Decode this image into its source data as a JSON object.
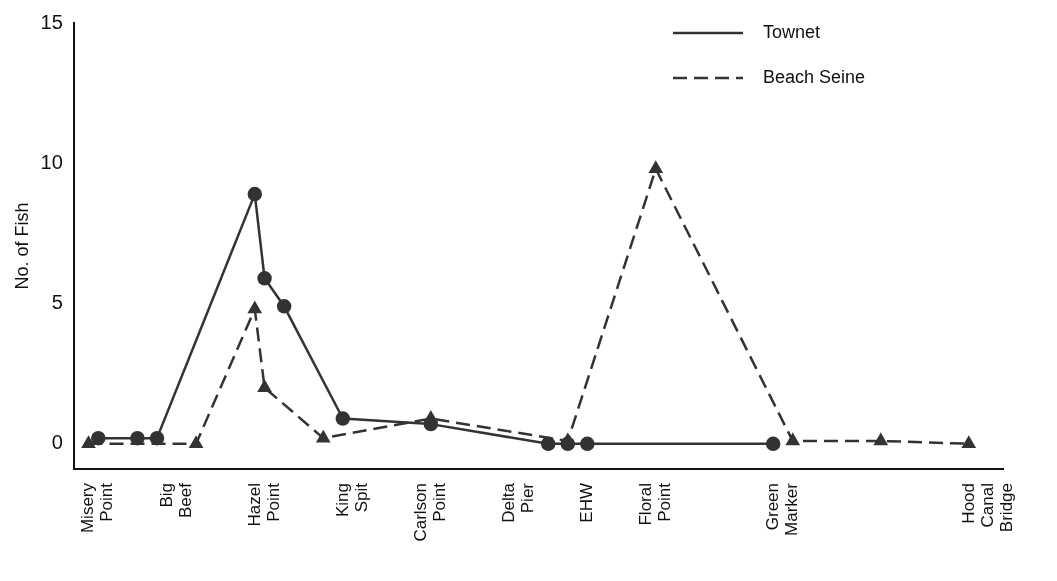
{
  "chart_data": {
    "type": "line",
    "ylabel": "No. of Fish",
    "ylim": [
      -0.9,
      15
    ],
    "yticks": [
      0,
      5,
      10,
      15
    ],
    "categories": [
      null,
      null,
      "Misery Point",
      null,
      null,
      null,
      null,
      null,
      null,
      null,
      "Big Beef",
      null,
      null,
      null,
      null,
      null,
      null,
      null,
      null,
      "Hazel Point",
      null,
      null,
      null,
      null,
      null,
      null,
      null,
      null,
      "King Spit",
      null,
      null,
      null,
      null,
      null,
      null,
      null,
      "Carlson Point",
      null,
      null,
      null,
      null,
      null,
      null,
      null,
      null,
      "Delta Pier",
      null,
      null,
      null,
      null,
      null,
      null,
      "EHW",
      null,
      null,
      null,
      null,
      null,
      null,
      "Floral Point",
      null,
      null,
      null,
      null,
      null,
      null,
      null,
      null,
      null,
      null,
      null,
      null,
      "Green Marker",
      null,
      null,
      null,
      null,
      null,
      null,
      null,
      null,
      null,
      null,
      null,
      null,
      null,
      null,
      null,
      null,
      null,
      null,
      null,
      null,
      "Hood Canal Bridge",
      null
    ],
    "grid": false,
    "legend": "top right",
    "series": [
      {
        "name": "Townet",
        "color": "#333333",
        "marker": "circle",
        "line_style": "solid",
        "values": [
          null,
          null,
          0.2,
          null,
          null,
          null,
          0.2,
          null,
          0.2,
          null,
          null,
          null,
          null,
          null,
          null,
          null,
          null,
          null,
          8.9,
          5.9,
          null,
          4.9,
          null,
          null,
          null,
          null,
          null,
          0.9,
          null,
          null,
          null,
          null,
          null,
          null,
          null,
          null,
          0.7,
          null,
          null,
          null,
          null,
          null,
          null,
          null,
          null,
          null,
          null,
          null,
          0,
          null,
          0,
          null,
          0,
          null,
          null,
          null,
          null,
          null,
          null,
          null,
          null,
          null,
          null,
          null,
          null,
          null,
          null,
          null,
          null,
          null,
          null,
          0,
          null,
          null,
          null,
          null,
          null,
          null,
          null,
          null,
          null,
          null,
          null,
          null,
          null,
          null,
          null,
          null,
          null,
          null,
          null,
          null,
          null,
          null,
          null
        ]
      },
      {
        "name": "Beach Seine",
        "color": "#333333",
        "marker": "triangle",
        "line_style": "dashed",
        "values": [
          null,
          0,
          null,
          null,
          null,
          null,
          null,
          null,
          null,
          null,
          null,
          null,
          0,
          null,
          null,
          null,
          null,
          null,
          4.8,
          2,
          null,
          null,
          null,
          null,
          null,
          0.2,
          null,
          null,
          null,
          null,
          null,
          null,
          null,
          null,
          null,
          null,
          0.9,
          null,
          null,
          null,
          null,
          null,
          null,
          null,
          null,
          null,
          null,
          null,
          null,
          null,
          0.1,
          null,
          null,
          null,
          null,
          null,
          null,
          null,
          null,
          9.8,
          null,
          null,
          null,
          null,
          null,
          null,
          null,
          null,
          null,
          null,
          null,
          null,
          null,
          0.1,
          null,
          null,
          null,
          null,
          null,
          null,
          null,
          null,
          0.1,
          null,
          null,
          null,
          null,
          null,
          null,
          null,
          null,
          0,
          null,
          null,
          null
        ]
      }
    ]
  }
}
